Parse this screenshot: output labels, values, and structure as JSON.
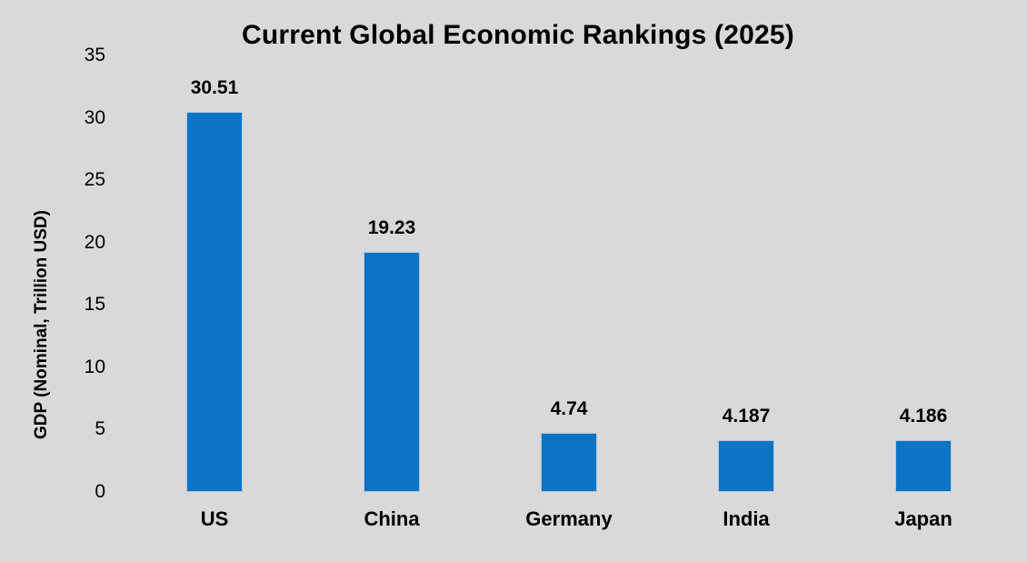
{
  "chart_data": {
    "type": "bar",
    "title": "Current Global Economic Rankings (2025)",
    "ylabel": "GDP (Nominal, Trillion USD)",
    "xlabel": "",
    "categories": [
      "US",
      "China",
      "Germany",
      "India",
      "Japan"
    ],
    "values": [
      30.51,
      19.23,
      4.74,
      4.187,
      4.186
    ],
    "value_labels": [
      "30.51",
      "19.23",
      "4.74",
      "4.187",
      "4.186"
    ],
    "yticks": [
      0,
      5,
      10,
      15,
      20,
      25,
      30,
      35
    ],
    "ylim": [
      0,
      35
    ],
    "grid": false,
    "legend": null,
    "axis_lines": false,
    "colors": {
      "bar_fill": "#0B74C4",
      "bar_border": "#B4C7DE",
      "background": "#D9D9D9",
      "text": "#000000"
    }
  }
}
